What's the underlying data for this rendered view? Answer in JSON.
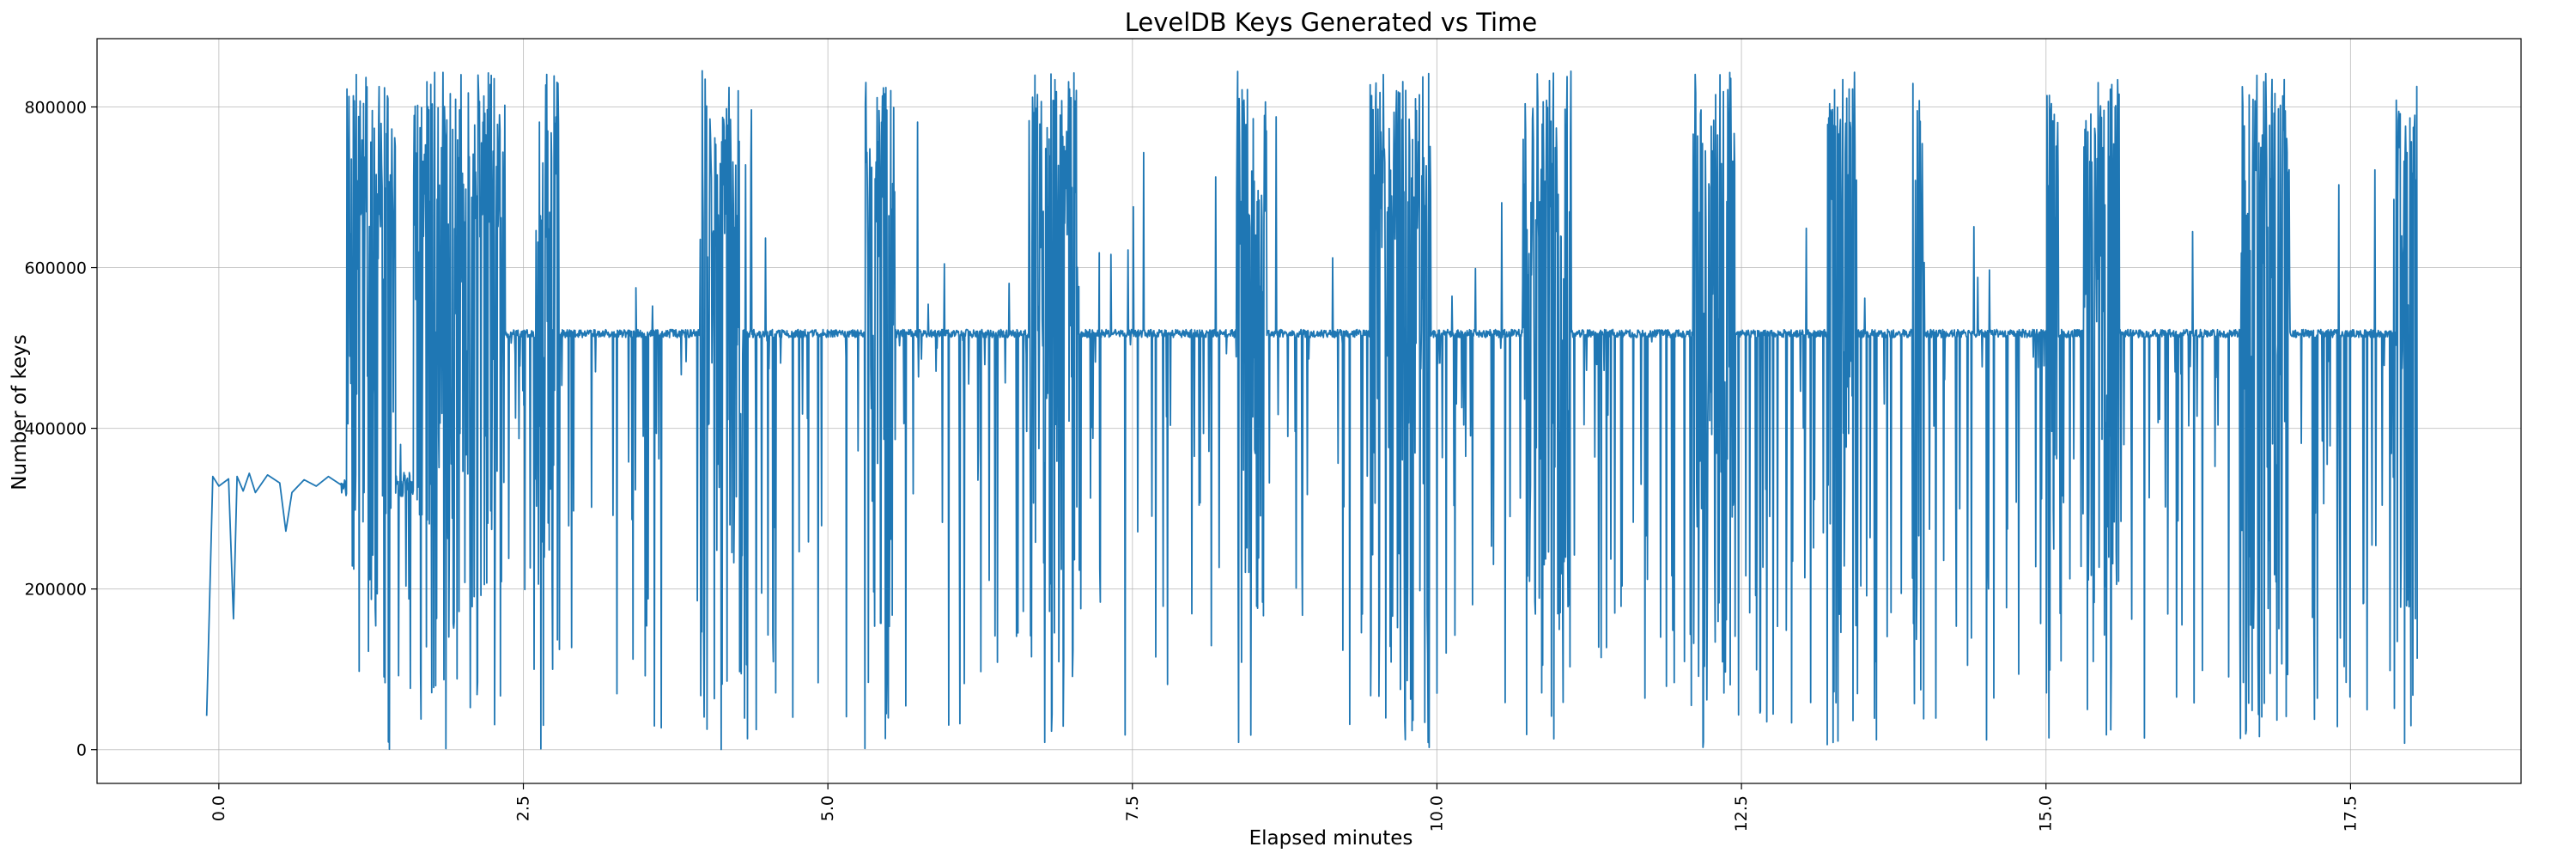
{
  "chart_data": {
    "type": "line",
    "title": "LevelDB Keys Generated vs Time",
    "xlabel": "Elapsed minutes",
    "ylabel": "Number of keys",
    "xlim": [
      -1.0,
      18.9
    ],
    "ylim": [
      -42000,
      885000
    ],
    "x_ticks": [
      0.0,
      2.5,
      5.0,
      7.5,
      10.0,
      12.5,
      15.0,
      17.5
    ],
    "x_tick_labels": [
      "0.0",
      "2.5",
      "5.0",
      "7.5",
      "10.0",
      "12.5",
      "15.0",
      "17.5"
    ],
    "x_tick_rotation": 90,
    "y_ticks": [
      0,
      200000,
      400000,
      600000,
      800000
    ],
    "y_tick_labels": [
      "0",
      "200000",
      "400000",
      "600000",
      "800000"
    ],
    "grid": true,
    "legend": "none",
    "colors": {
      "line": "#1f77b4",
      "grid": "#b0b0b0",
      "axes": "#000000"
    },
    "series": [
      {
        "generator": {
          "seed": 1337,
          "step": 0.004,
          "baseline_level": 330000,
          "plateau_level": 518000,
          "max_level": 845000,
          "startup": [
            [
              -0.1,
              42000
            ],
            [
              -0.05,
              340000
            ],
            [
              0.0,
              328000
            ],
            [
              0.08,
              337000
            ],
            [
              0.12,
              163000
            ],
            [
              0.15,
              340000
            ],
            [
              0.2,
              322000
            ],
            [
              0.25,
              344000
            ],
            [
              0.3,
              320000
            ],
            [
              0.4,
              342000
            ],
            [
              0.5,
              332000
            ],
            [
              0.55,
              272000
            ],
            [
              0.6,
              320000
            ],
            [
              0.7,
              336000
            ],
            [
              0.8,
              328000
            ],
            [
              0.9,
              340000
            ],
            [
              1.0,
              330000
            ]
          ],
          "bursts": [
            [
              1.05,
              1.45
            ],
            [
              1.6,
              2.0
            ],
            [
              2.0,
              2.35
            ],
            [
              2.6,
              2.8
            ],
            [
              3.95,
              4.3
            ],
            [
              5.3,
              5.55
            ],
            [
              6.65,
              7.05
            ],
            [
              8.35,
              8.6
            ],
            [
              9.45,
              9.95
            ],
            [
              10.7,
              11.1
            ],
            [
              12.1,
              12.45
            ],
            [
              13.2,
              13.45
            ],
            [
              13.9,
              14.0
            ],
            [
              15.0,
              15.1
            ],
            [
              15.3,
              15.6
            ],
            [
              16.6,
              17.0
            ],
            [
              17.85,
              18.1
            ]
          ],
          "plateau_start": 2.35,
          "end_minutes": 18.05,
          "spike_probability": 0.12
        }
      }
    ]
  }
}
